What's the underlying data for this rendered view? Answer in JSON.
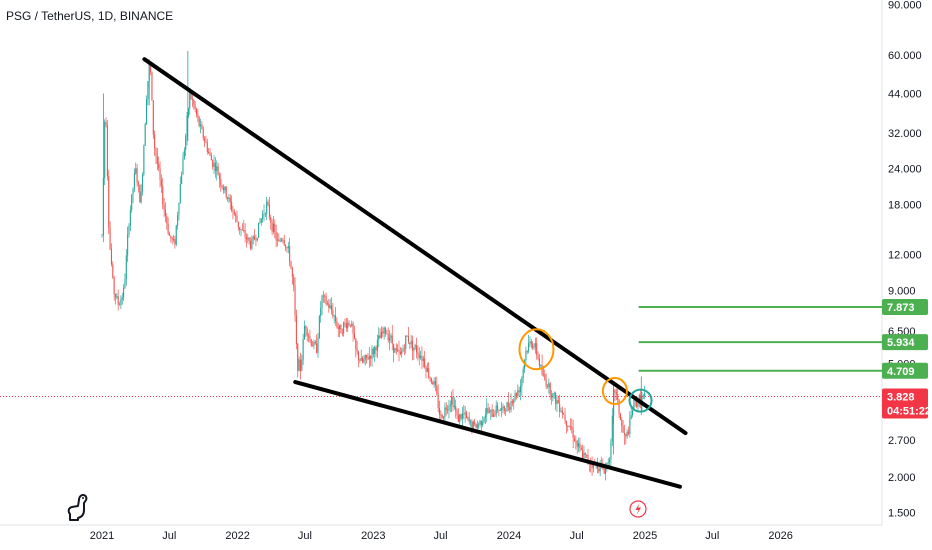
{
  "header": {
    "title": "PSG / TetherUS, 1D, BINANCE"
  },
  "colors": {
    "up": "#26a69a",
    "down": "#ef5350",
    "trendline": "#000000",
    "target": "#4caf50",
    "circle_orange": "#ff9800",
    "circle_teal": "#26a69a",
    "price_badge": "#f23645",
    "axis_text": "#131722"
  },
  "icons": {
    "logo": "tradingview-logo-icon",
    "flash": "lightning-icon"
  },
  "chart_data": {
    "type": "candlestick",
    "title": "PSG / TetherUS, 1D, BINANCE",
    "y_scale": "log",
    "ylim": [
      1.4,
      90
    ],
    "y_ticks": [
      "90.000",
      "60.000",
      "44.000",
      "32.000",
      "24.000",
      "18.000",
      "12.000",
      "9.000",
      "6.500",
      "5.000",
      "3.828",
      "2.700",
      "2.000",
      "1.500"
    ],
    "x_ticks": [
      "2021",
      "Jul",
      "2022",
      "Jul",
      "2023",
      "Jul",
      "2024",
      "Jul",
      "2025",
      "Jul",
      "2026"
    ],
    "price_path": [
      [
        "2021-01-01",
        14
      ],
      [
        "2021-01-10",
        44
      ],
      [
        "2021-01-20",
        14
      ],
      [
        "2021-02-01",
        9
      ],
      [
        "2021-02-15",
        8
      ],
      [
        "2021-03-01",
        9
      ],
      [
        "2021-03-15",
        16
      ],
      [
        "2021-04-01",
        24
      ],
      [
        "2021-04-15",
        18
      ],
      [
        "2021-05-01",
        44
      ],
      [
        "2021-05-10",
        58
      ],
      [
        "2021-05-20",
        30
      ],
      [
        "2021-06-01",
        24
      ],
      [
        "2021-06-15",
        18
      ],
      [
        "2021-07-01",
        14
      ],
      [
        "2021-07-15",
        13
      ],
      [
        "2021-08-01",
        22
      ],
      [
        "2021-08-15",
        32
      ],
      [
        "2021-08-25",
        44
      ],
      [
        "2021-09-05",
        40
      ],
      [
        "2021-09-20",
        34
      ],
      [
        "2021-10-05",
        30
      ],
      [
        "2021-10-20",
        26
      ],
      [
        "2021-11-05",
        24
      ],
      [
        "2021-11-20",
        21
      ],
      [
        "2021-12-05",
        19
      ],
      [
        "2021-12-20",
        17
      ],
      [
        "2022-01-05",
        15
      ],
      [
        "2022-01-20",
        14
      ],
      [
        "2022-02-05",
        13
      ],
      [
        "2022-02-20",
        14
      ],
      [
        "2022-03-05",
        16
      ],
      [
        "2022-03-20",
        18
      ],
      [
        "2022-04-05",
        15
      ],
      [
        "2022-04-20",
        13
      ],
      [
        "2022-05-01",
        14
      ],
      [
        "2022-05-20",
        12
      ],
      [
        "2022-06-01",
        9
      ],
      [
        "2022-06-10",
        5
      ],
      [
        "2022-06-20",
        4.8
      ],
      [
        "2022-07-01",
        7
      ],
      [
        "2022-07-15",
        6
      ],
      [
        "2022-08-01",
        5.6
      ],
      [
        "2022-08-15",
        8.5
      ],
      [
        "2022-09-01",
        8
      ],
      [
        "2022-09-15",
        7.5
      ],
      [
        "2022-10-01",
        6.5
      ],
      [
        "2022-10-15",
        6.8
      ],
      [
        "2022-11-01",
        7
      ],
      [
        "2022-11-15",
        5.5
      ],
      [
        "2022-12-01",
        5
      ],
      [
        "2022-12-15",
        5.2
      ],
      [
        "2023-01-01",
        5.5
      ],
      [
        "2023-01-15",
        6
      ],
      [
        "2023-02-01",
        6.5
      ],
      [
        "2023-02-15",
        6.2
      ],
      [
        "2023-03-01",
        5.5
      ],
      [
        "2023-03-15",
        5.3
      ],
      [
        "2023-04-01",
        6.2
      ],
      [
        "2023-04-15",
        5.8
      ],
      [
        "2023-05-01",
        5.5
      ],
      [
        "2023-05-15",
        5.2
      ],
      [
        "2023-06-01",
        4.5
      ],
      [
        "2023-06-15",
        4.2
      ],
      [
        "2023-07-01",
        3.2
      ],
      [
        "2023-07-15",
        3.5
      ],
      [
        "2023-08-01",
        3.8
      ],
      [
        "2023-08-15",
        3.2
      ],
      [
        "2023-09-01",
        3.3
      ],
      [
        "2023-09-15",
        3.1
      ],
      [
        "2023-10-01",
        3.0
      ],
      [
        "2023-10-15",
        3.1
      ],
      [
        "2023-11-01",
        3.4
      ],
      [
        "2023-11-15",
        3.3
      ],
      [
        "2023-12-01",
        3.5
      ],
      [
        "2023-12-15",
        3.4
      ],
      [
        "2024-01-01",
        3.6
      ],
      [
        "2024-01-15",
        3.8
      ],
      [
        "2024-02-01",
        4.2
      ],
      [
        "2024-02-15",
        5.5
      ],
      [
        "2024-03-01",
        6
      ],
      [
        "2024-03-15",
        5.5
      ],
      [
        "2024-04-01",
        4.5
      ],
      [
        "2024-04-15",
        4.2
      ],
      [
        "2024-05-01",
        3.8
      ],
      [
        "2024-05-15",
        3.6
      ],
      [
        "2024-06-01",
        3.2
      ],
      [
        "2024-06-15",
        3.0
      ],
      [
        "2024-07-01",
        2.6
      ],
      [
        "2024-07-15",
        2.4
      ],
      [
        "2024-08-01",
        2.3
      ],
      [
        "2024-08-15",
        2.2
      ],
      [
        "2024-09-01",
        2.2
      ],
      [
        "2024-09-15",
        2.1
      ],
      [
        "2024-10-01",
        2.5
      ],
      [
        "2024-10-10",
        4.2
      ],
      [
        "2024-10-20",
        3.6
      ],
      [
        "2024-11-01",
        2.9
      ],
      [
        "2024-11-10",
        2.7
      ],
      [
        "2024-11-20",
        3.0
      ],
      [
        "2024-12-01",
        3.6
      ],
      [
        "2024-12-15",
        3.7
      ],
      [
        "2025-01-01",
        3.828
      ]
    ],
    "trendlines": [
      {
        "name": "upper-trendline",
        "from": [
          "2021-04-25",
          58
        ],
        "to": [
          "2025-04-20",
          2.85
        ]
      },
      {
        "name": "lower-trendline",
        "from": [
          "2022-06-05",
          4.3
        ],
        "to": [
          "2025-04-05",
          1.85
        ]
      }
    ],
    "target_levels": [
      {
        "value": 7.873,
        "label": "7.873",
        "from": "2024-12-15"
      },
      {
        "value": 5.934,
        "label": "5.934",
        "from": "2024-12-15"
      },
      {
        "value": 4.709,
        "label": "4.709",
        "from": "2024-12-15"
      }
    ],
    "current_price": {
      "value": 3.828,
      "label": "3.828",
      "countdown": "04:51:22"
    },
    "highlight_circles": [
      {
        "name": "circle-breakout-1",
        "date": "2024-03-15",
        "price": 5.6,
        "color": "orange"
      },
      {
        "name": "circle-breakout-2",
        "date": "2024-10-12",
        "price": 4.0,
        "color": "orange"
      },
      {
        "name": "circle-retest",
        "date": "2024-12-20",
        "price": 3.7,
        "color": "teal"
      }
    ],
    "grid": false,
    "legend": "none"
  }
}
